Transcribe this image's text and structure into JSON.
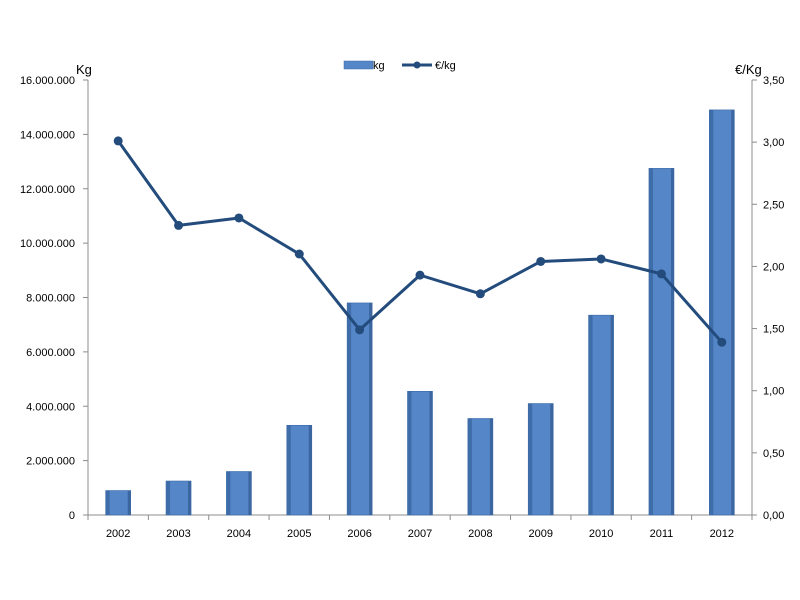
{
  "chart_data": {
    "type": "bar",
    "categories": [
      "2002",
      "2003",
      "2004",
      "2005",
      "2006",
      "2007",
      "2008",
      "2009",
      "2010",
      "2011",
      "2012"
    ],
    "series": [
      {
        "name": "kg",
        "type": "bar",
        "axis": "left",
        "color": "#5586c8",
        "values": [
          900000,
          1250000,
          1600000,
          3300000,
          7800000,
          4550000,
          3550000,
          4100000,
          7350000,
          12750000,
          14900000
        ]
      },
      {
        "name": "€/kg",
        "type": "line",
        "axis": "right",
        "color": "#234c7d",
        "values": [
          3.01,
          2.33,
          2.39,
          2.1,
          1.49,
          1.93,
          1.78,
          2.04,
          2.06,
          1.94,
          1.39
        ]
      }
    ],
    "y_left": {
      "label": "Kg",
      "range": [
        0,
        16000000
      ],
      "ticks": [
        "0",
        "2.000.000",
        "4.000.000",
        "6.000.000",
        "8.000.000",
        "10.000.000",
        "12.000.000",
        "14.000.000",
        "16.000.000"
      ]
    },
    "y_right": {
      "label": "€/Kg",
      "range": [
        0,
        3.5
      ],
      "ticks": [
        "0,00",
        "0,50",
        "1,00",
        "1,50",
        "2,00",
        "2,50",
        "3,00",
        "3,50"
      ]
    },
    "legend_position": "top-center",
    "grid": false
  }
}
